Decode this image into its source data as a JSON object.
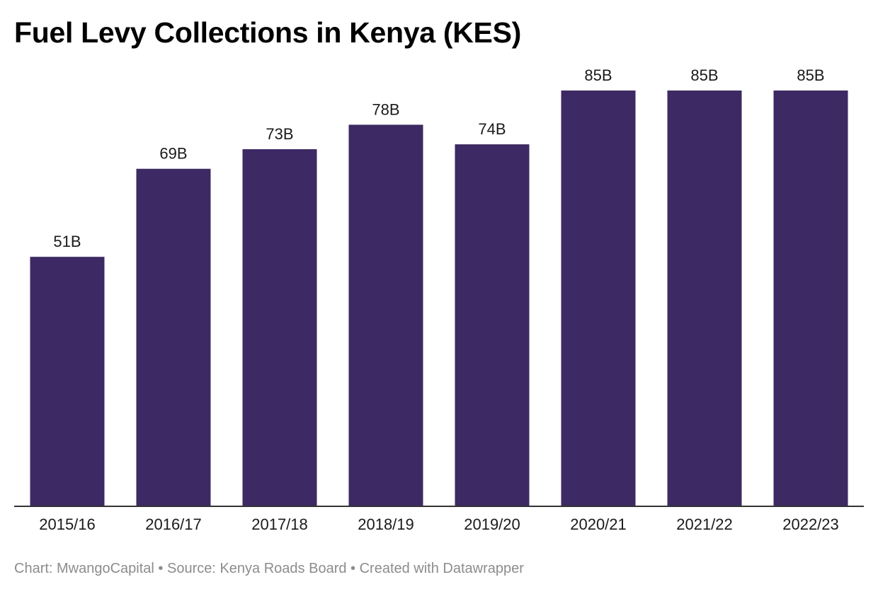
{
  "chart_data": {
    "type": "bar",
    "title": "Fuel Levy Collections in Kenya (KES)",
    "categories": [
      "2015/16",
      "2016/17",
      "2017/18",
      "2018/19",
      "2019/20",
      "2020/21",
      "2021/22",
      "2022/23"
    ],
    "values": [
      51,
      69,
      73,
      78,
      74,
      85,
      85,
      85
    ],
    "value_labels": [
      "51B",
      "69B",
      "73B",
      "78B",
      "74B",
      "85B",
      "85B",
      "85B"
    ],
    "xlabel": "",
    "ylabel": "",
    "ylim": [
      0,
      85
    ],
    "grid": false,
    "bar_color": "#3d2963",
    "axis_color": "#333333"
  },
  "footer": {
    "credit": "Chart: MwangoCapital • Source: Kenya Roads Board • Created with Datawrapper"
  }
}
